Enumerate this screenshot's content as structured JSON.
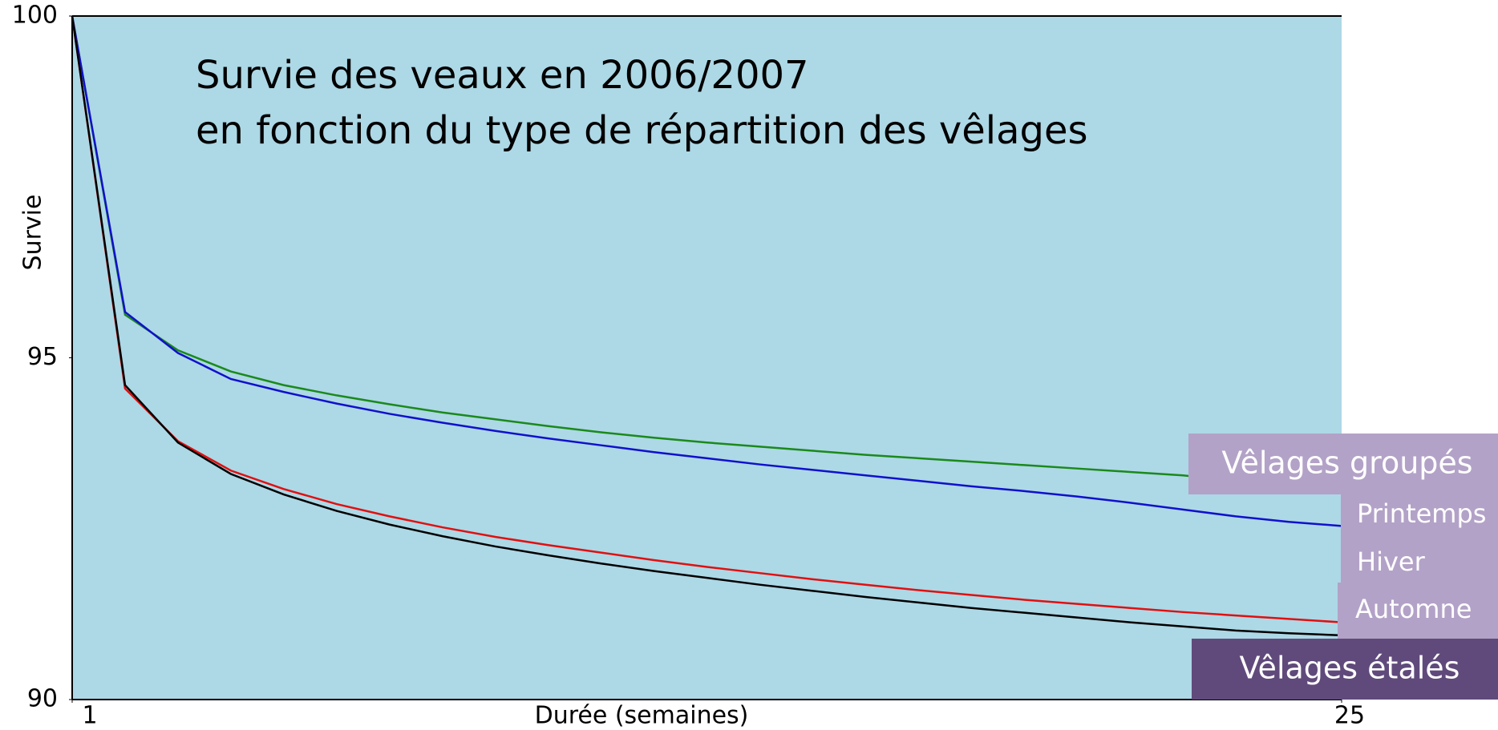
{
  "chart_data": {
    "type": "line",
    "title": "Survie des veaux en 2006/2007",
    "subtitle": "en fonction du type de répartition des vêlages",
    "x_label": "Durée (semaines)",
    "y_label": "Survie",
    "x": [
      1,
      2,
      3,
      4,
      5,
      6,
      7,
      8,
      9,
      10,
      11,
      12,
      13,
      14,
      15,
      16,
      17,
      18,
      19,
      20,
      21,
      22,
      23,
      24,
      25
    ],
    "series": [
      {
        "name": "Vêlages groupés",
        "color": "#1a8a1a",
        "values": [
          100,
          95.63,
          95.11,
          94.8,
          94.6,
          94.45,
          94.32,
          94.2,
          94.1,
          94.0,
          93.91,
          93.83,
          93.76,
          93.7,
          93.64,
          93.58,
          93.53,
          93.48,
          93.43,
          93.38,
          93.33,
          93.28,
          93.2,
          93.14,
          93.08
        ]
      },
      {
        "name": "Printemps",
        "color": "#1010cc",
        "values": [
          100,
          95.67,
          95.07,
          94.69,
          94.5,
          94.33,
          94.18,
          94.05,
          93.93,
          93.82,
          93.72,
          93.62,
          93.53,
          93.44,
          93.36,
          93.28,
          93.2,
          93.12,
          93.05,
          92.97,
          92.88,
          92.78,
          92.68,
          92.6,
          92.54
        ]
      },
      {
        "name": "Automne",
        "color": "#e01010",
        "values": [
          100,
          94.55,
          93.78,
          93.35,
          93.08,
          92.86,
          92.68,
          92.52,
          92.38,
          92.26,
          92.15,
          92.04,
          91.94,
          91.85,
          91.76,
          91.68,
          91.6,
          91.53,
          91.46,
          91.4,
          91.34,
          91.28,
          91.23,
          91.18,
          91.13
        ]
      },
      {
        "name": "Vêlages étalés",
        "color": "#000000",
        "values": [
          100,
          94.6,
          93.76,
          93.3,
          93.0,
          92.76,
          92.56,
          92.39,
          92.24,
          92.11,
          91.99,
          91.88,
          91.78,
          91.68,
          91.59,
          91.5,
          91.42,
          91.34,
          91.27,
          91.2,
          91.13,
          91.07,
          91.01,
          90.97,
          90.94
        ]
      }
    ],
    "annotations": [
      "Hiver"
    ],
    "xlim": [
      1,
      25
    ],
    "xticks": [
      1,
      25
    ],
    "ylim": [
      90,
      100
    ],
    "yticks": [
      90,
      95,
      100
    ],
    "grid": false
  }
}
